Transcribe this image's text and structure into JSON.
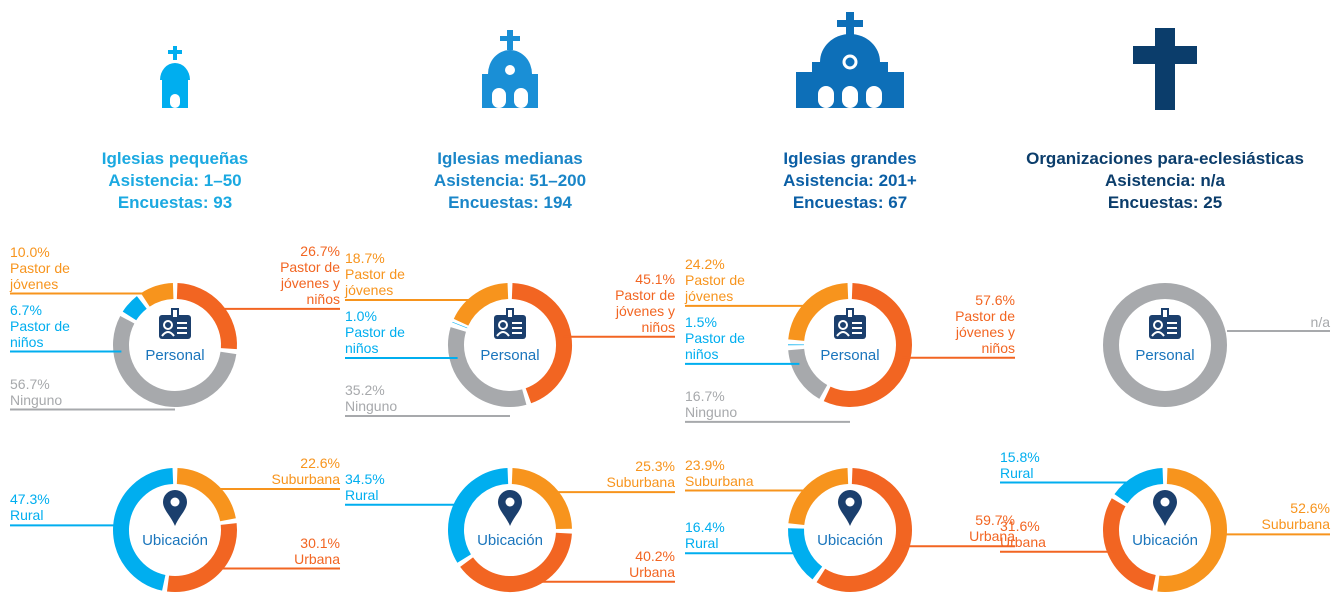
{
  "groups": [
    {
      "heading": [
        "Iglesias pequeñas",
        "Asistencia: 1–50",
        "Encuestas: 93"
      ]
    },
    {
      "heading": [
        "Iglesias medianas",
        "Asistencia: 51–200",
        "Encuestas: 194"
      ]
    },
    {
      "heading": [
        "Iglesias grandes",
        "Asistencia: 201+",
        "Encuestas: 67"
      ]
    },
    {
      "heading": [
        "Organizaciones para-eclesiásticas",
        "Asistencia: n/a",
        "Encuestas: 25"
      ]
    }
  ],
  "chart_data": [
    {
      "type": "pie",
      "center_label": "Personal",
      "categories": [
        "Pastor de jóvenes y niños",
        "Ninguno",
        "Pastor de niños",
        "Pastor de jóvenes"
      ],
      "values": [
        26.7,
        56.7,
        6.7,
        10.0
      ],
      "value_labels": [
        "26.7%",
        "56.7%",
        "6.7%",
        "10.0%"
      ],
      "colors": [
        "#f26522",
        "#a7a9ac",
        "#00aeef",
        "#f7941d"
      ]
    },
    {
      "type": "pie",
      "center_label": "Ubicación",
      "categories": [
        "Suburbana",
        "Urbana",
        "Rural"
      ],
      "values": [
        22.6,
        30.1,
        47.3
      ],
      "value_labels": [
        "22.6%",
        "30.1%",
        "47.3%"
      ],
      "colors": [
        "#f7941d",
        "#f26522",
        "#00aeef"
      ]
    },
    {
      "type": "pie",
      "center_label": "Personal",
      "categories": [
        "Pastor de jóvenes y niños",
        "Ninguno",
        "Pastor de niños",
        "Pastor de jóvenes"
      ],
      "values": [
        45.1,
        35.2,
        1.0,
        18.7
      ],
      "value_labels": [
        "45.1%",
        "35.2%",
        "1.0%",
        "18.7%"
      ],
      "colors": [
        "#f26522",
        "#a7a9ac",
        "#00aeef",
        "#f7941d"
      ]
    },
    {
      "type": "pie",
      "center_label": "Ubicación",
      "categories": [
        "Suburbana",
        "Urbana",
        "Rural"
      ],
      "values": [
        25.3,
        40.2,
        34.5
      ],
      "value_labels": [
        "25.3%",
        "40.2%",
        "34.5%"
      ],
      "colors": [
        "#f7941d",
        "#f26522",
        "#00aeef"
      ]
    },
    {
      "type": "pie",
      "center_label": "Personal",
      "categories": [
        "Pastor de jóvenes y niños",
        "Ninguno",
        "Pastor de niños",
        "Pastor de jóvenes"
      ],
      "values": [
        57.6,
        16.7,
        1.5,
        24.2
      ],
      "value_labels": [
        "57.6%",
        "16.7%",
        "1.5%",
        "24.2%"
      ],
      "colors": [
        "#f26522",
        "#a7a9ac",
        "#00aeef",
        "#f7941d"
      ]
    },
    {
      "type": "pie",
      "center_label": "Ubicación",
      "categories": [
        "Urbana",
        "Rural",
        "Suburbana"
      ],
      "values": [
        59.7,
        16.4,
        23.9
      ],
      "value_labels": [
        "59.7%",
        "16.4%",
        "23.9%"
      ],
      "colors": [
        "#f26522",
        "#00aeef",
        "#f7941d"
      ]
    },
    {
      "type": "pie",
      "center_label": "Personal",
      "categories": [],
      "values": [],
      "label": "n/a",
      "color": "#a7a9ac"
    },
    {
      "type": "pie",
      "center_label": "Ubicación",
      "categories": [
        "Suburbana",
        "Urbana",
        "Rural"
      ],
      "values": [
        52.6,
        31.6,
        15.8
      ],
      "value_labels": [
        "52.6%",
        "31.6%",
        "15.8%"
      ],
      "colors": [
        "#f7941d",
        "#f26522",
        "#00aeef"
      ]
    }
  ]
}
